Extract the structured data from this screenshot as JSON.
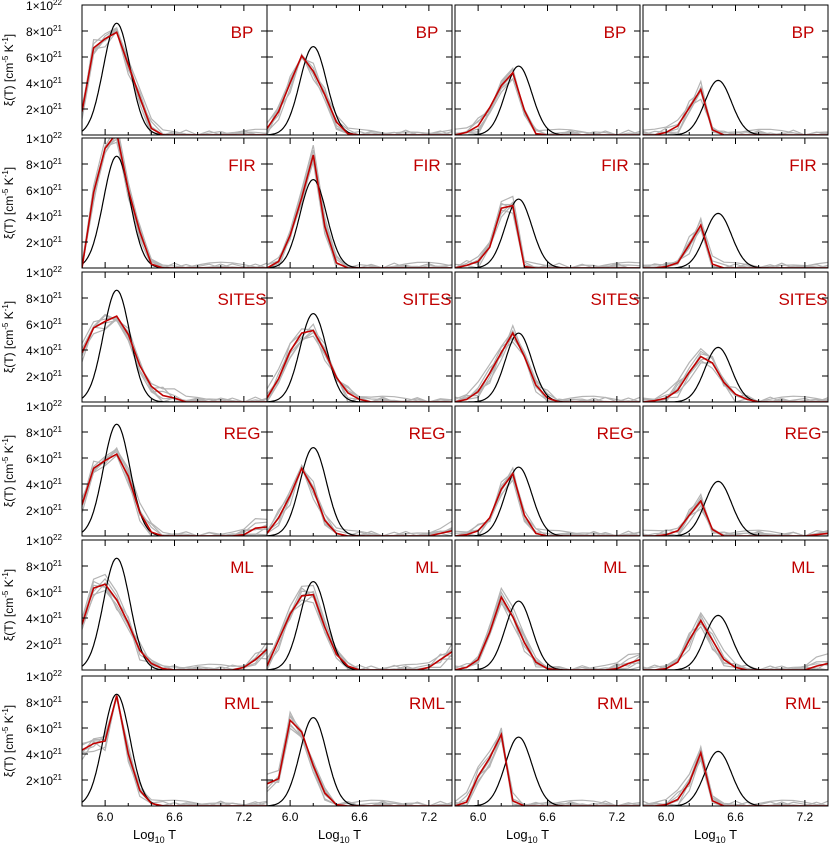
{
  "figure": {
    "rows": [
      "BP",
      "FIR",
      "SITES",
      "REG",
      "ML",
      "RML"
    ],
    "colors": {
      "model": "#000000",
      "reconstruction": "#c00000",
      "trials": "#b4b4b4",
      "label": "#c00000"
    },
    "ylabel_prefix": "ξ(T) [cm",
    "ylabel_sup": "-5",
    "ylabel_mid": " K",
    "ylabel_sup2": "-1",
    "ylabel_suffix": "]",
    "xlabel_prefix": "Log",
    "xlabel_sub": "10",
    "xlabel_suffix": " T"
  },
  "chart_data": {
    "type": "line",
    "grid": false,
    "xlim": [
      5.8,
      7.4
    ],
    "ylim": [
      0,
      1e+22
    ],
    "xticks": [
      "6.0",
      "6.6",
      "7.2"
    ],
    "yticks": [
      {
        "value": 2e+21,
        "mant": "2×10",
        "exp": "21"
      },
      {
        "value": 4e+21,
        "mant": "4×10",
        "exp": "21"
      },
      {
        "value": 6e+21,
        "mant": "6×10",
        "exp": "21"
      },
      {
        "value": 8e+21,
        "mant": "8×10",
        "exp": "21"
      },
      {
        "value": 1e+22,
        "mant": "1×10",
        "exp": "22"
      }
    ],
    "columns": [
      {
        "model_center": 6.1,
        "model_sigma": 0.115,
        "model_peak": 8.6e+21
      },
      {
        "model_center": 6.2,
        "model_sigma": 0.115,
        "model_peak": 6.8e+21
      },
      {
        "model_center": 6.35,
        "model_sigma": 0.115,
        "model_peak": 5.3e+21
      },
      {
        "model_center": 6.45,
        "model_sigma": 0.115,
        "model_peak": 4.2e+21
      }
    ],
    "x": [
      5.8,
      5.9,
      6.0,
      6.1,
      6.2,
      6.3,
      6.4,
      6.5,
      6.6,
      6.7,
      6.8,
      6.9,
      7.0,
      7.1,
      7.2,
      7.3,
      7.4
    ],
    "panels": [
      {
        "row": "BP",
        "col": 0,
        "values": [
          1.8e+21,
          6.7e+21,
          7.4e+21,
          7.9e+21,
          5.4e+21,
          2.9e+21,
          5e+20,
          0,
          0,
          0,
          0,
          0,
          0,
          0,
          0,
          0,
          0
        ]
      },
      {
        "row": "BP",
        "col": 1,
        "values": [
          5e+20,
          1.8e+21,
          4e+21,
          6.1e+21,
          4.9e+21,
          3.1e+21,
          1e+21,
          1e+20,
          0,
          0,
          0,
          0,
          0,
          0,
          0,
          0,
          0
        ]
      },
      {
        "row": "BP",
        "col": 2,
        "values": [
          0,
          2e+20,
          7e+20,
          2.1e+21,
          3.8e+21,
          4.8e+21,
          1.9e+21,
          1e+20,
          0,
          0,
          0,
          0,
          0,
          0,
          0,
          0,
          0
        ]
      },
      {
        "row": "BP",
        "col": 3,
        "values": [
          0,
          0,
          2e+20,
          7e+20,
          2.1e+21,
          3.5e+21,
          4e+20,
          0,
          0,
          0,
          0,
          0,
          0,
          0,
          0,
          0,
          0
        ]
      },
      {
        "row": "FIR",
        "col": 0,
        "values": [
          0,
          5.8e+21,
          9.2e+21,
          1.04e+22,
          6e+21,
          2.8e+21,
          3e+20,
          0,
          0,
          0,
          0,
          0,
          0,
          0,
          0,
          0,
          0
        ]
      },
      {
        "row": "FIR",
        "col": 1,
        "values": [
          0,
          5e+20,
          2.5e+21,
          5.4e+21,
          8.7e+21,
          3.2e+21,
          4e+20,
          0,
          0,
          0,
          0,
          0,
          0,
          0,
          0,
          0,
          0
        ]
      },
      {
        "row": "FIR",
        "col": 2,
        "values": [
          0,
          2e+20,
          5e+20,
          1.6e+21,
          4.6e+21,
          4.8e+21,
          1e+20,
          0,
          0,
          0,
          0,
          0,
          0,
          0,
          0,
          0,
          0
        ]
      },
      {
        "row": "FIR",
        "col": 3,
        "values": [
          0,
          0,
          1e+20,
          4e+20,
          1.8e+21,
          3.3e+21,
          3e+20,
          0,
          0,
          0,
          0,
          0,
          0,
          0,
          0,
          0,
          0
        ]
      },
      {
        "row": "SITES",
        "col": 0,
        "values": [
          3.8e+21,
          5.7e+21,
          6.2e+21,
          6.6e+21,
          5.2e+21,
          2.8e+21,
          1.2e+21,
          5e+20,
          3e+20,
          0,
          0,
          0,
          0,
          0,
          0,
          0,
          0
        ]
      },
      {
        "row": "SITES",
        "col": 1,
        "values": [
          3e+20,
          1.8e+21,
          3.9e+21,
          5.3e+21,
          5.5e+21,
          3.9e+21,
          1.9e+21,
          7e+20,
          2e+20,
          0,
          0,
          0,
          0,
          0,
          0,
          0,
          0
        ]
      },
      {
        "row": "SITES",
        "col": 2,
        "values": [
          0,
          2e+20,
          8e+20,
          2.2e+21,
          3.8e+21,
          5.3e+21,
          3.5e+21,
          1.3e+21,
          3e+20,
          0,
          0,
          0,
          0,
          0,
          0,
          0,
          0
        ]
      },
      {
        "row": "SITES",
        "col": 3,
        "values": [
          0,
          1e+20,
          3e+20,
          9e+20,
          2.3e+21,
          3.5e+21,
          3e+21,
          1.5e+21,
          6e+20,
          2e+20,
          0,
          0,
          0,
          0,
          0,
          0,
          0
        ]
      },
      {
        "row": "REG",
        "col": 0,
        "values": [
          2.4e+21,
          5.2e+21,
          5.8e+21,
          6.3e+21,
          4.6e+21,
          1.8e+21,
          3e+20,
          0,
          0,
          0,
          0,
          0,
          0,
          0,
          1e+20,
          6e+20,
          7e+20
        ]
      },
      {
        "row": "REG",
        "col": 1,
        "values": [
          2e+20,
          1.4e+21,
          3.1e+21,
          5.2e+21,
          3.6e+21,
          1.2e+21,
          2e+20,
          0,
          0,
          0,
          0,
          0,
          0,
          0,
          0,
          2e+20,
          4e+20
        ]
      },
      {
        "row": "REG",
        "col": 2,
        "values": [
          0,
          1e+20,
          4e+20,
          1.4e+21,
          3.6e+21,
          4.8e+21,
          1.6e+21,
          2e+20,
          0,
          0,
          0,
          0,
          0,
          0,
          0,
          0,
          0
        ]
      },
      {
        "row": "REG",
        "col": 3,
        "values": [
          0,
          0,
          1e+20,
          4e+20,
          1.6e+21,
          2.7e+21,
          5e+20,
          0,
          0,
          0,
          0,
          0,
          0,
          0,
          0,
          1e+20,
          2e+20
        ]
      },
      {
        "row": "ML",
        "col": 0,
        "values": [
          3.5e+21,
          6.3e+21,
          6.6e+21,
          5.4e+21,
          3.6e+21,
          1.5e+21,
          5e+20,
          1e+20,
          0,
          0,
          0,
          0,
          0,
          0,
          2e+20,
          8e+20,
          1.6e+21
        ]
      },
      {
        "row": "ML",
        "col": 1,
        "values": [
          3e+20,
          2.3e+21,
          4.3e+21,
          5.7e+21,
          5.8e+21,
          3.3e+21,
          1.2e+21,
          3e+20,
          0,
          0,
          0,
          0,
          0,
          0,
          2e+20,
          8e+20,
          1.4e+21
        ]
      },
      {
        "row": "ML",
        "col": 2,
        "values": [
          0,
          2e+20,
          8e+20,
          2.9e+21,
          5.6e+21,
          4.1e+21,
          2.1e+21,
          6e+20,
          1e+20,
          0,
          0,
          0,
          0,
          0,
          1e+20,
          5e+20,
          8e+20
        ]
      },
      {
        "row": "ML",
        "col": 3,
        "values": [
          0,
          0,
          1e+20,
          6e+20,
          2.3e+21,
          3.8e+21,
          2.3e+21,
          8e+20,
          2e+20,
          0,
          0,
          0,
          0,
          0,
          0,
          3e+20,
          5e+20
        ]
      },
      {
        "row": "RML",
        "col": 0,
        "values": [
          4.3e+21,
          4.8e+21,
          5e+21,
          8.5e+21,
          4e+21,
          1.2e+21,
          2e+20,
          0,
          0,
          0,
          0,
          0,
          0,
          0,
          0,
          0,
          0
        ]
      },
      {
        "row": "RML",
        "col": 1,
        "values": [
          1.7e+21,
          2.1e+21,
          6.6e+21,
          5.7e+21,
          3.1e+21,
          1e+21,
          1e+20,
          0,
          0,
          0,
          0,
          0,
          0,
          0,
          0,
          0,
          0
        ]
      },
      {
        "row": "RML",
        "col": 2,
        "values": [
          0,
          3e+20,
          2.3e+21,
          3.7e+21,
          5.5e+21,
          4e+20,
          0,
          0,
          0,
          0,
          0,
          0,
          0,
          0,
          0,
          0,
          0
        ]
      },
      {
        "row": "RML",
        "col": 3,
        "values": [
          0,
          0,
          1e+20,
          5e+20,
          1.8e+21,
          4.1e+21,
          4e+20,
          0,
          0,
          0,
          0,
          0,
          0,
          0,
          0,
          0,
          0
        ]
      }
    ]
  }
}
